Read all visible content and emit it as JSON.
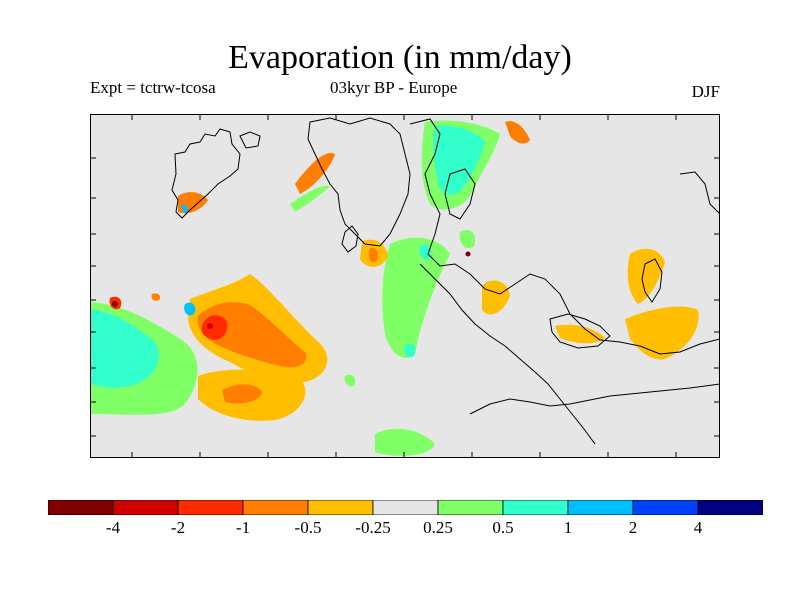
{
  "title": "Evaporation (in mm/day)",
  "subtitle_left": "Expt = tctrw-tcosa",
  "subtitle_center": "03kyr BP - Europe",
  "subtitle_right": "DJF",
  "legend": {
    "colors": [
      "#800000",
      "#d10000",
      "#ff2a00",
      "#ff7d00",
      "#ffbf00",
      "#e6e6e6",
      "#80ff66",
      "#33ffcc",
      "#00bfff",
      "#0040ff",
      "#000080"
    ],
    "labels": [
      "-4",
      "-2",
      "-1",
      "-0.5",
      "-0.25",
      "0.25",
      "0.5",
      "1",
      "2",
      "4"
    ]
  },
  "map": {
    "background_color": "#e6e6e6",
    "coastline_color": "#000000"
  }
}
